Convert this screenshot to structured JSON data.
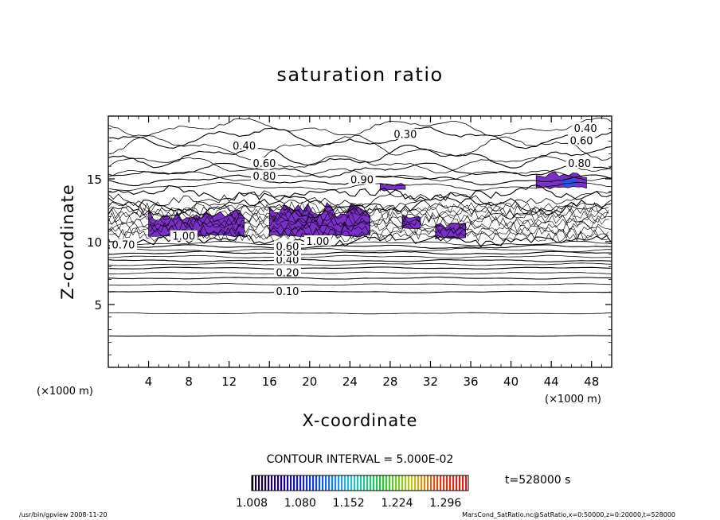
{
  "chart_data": {
    "type": "contour",
    "title": "saturation ratio",
    "xlabel": "X-coordinate",
    "ylabel": "Z-coordinate",
    "x_unit_left": "(×1000 m)",
    "x_unit_right": "(×1000 m)",
    "xlim": [
      0,
      50
    ],
    "ylim": [
      0,
      20
    ],
    "xticks": [
      4,
      8,
      12,
      16,
      20,
      24,
      28,
      32,
      36,
      40,
      44,
      48
    ],
    "yticks": [
      5,
      10,
      15
    ],
    "contour_interval_label": "CONTOUR INTERVAL = 5.000E-02",
    "time_label": "t=528000 s",
    "colorbar_ticks": [
      "1.008",
      "1.080",
      "1.152",
      "1.224",
      "1.296"
    ],
    "colorbar_range": [
      1.008,
      1.33
    ],
    "contour_labels": [
      {
        "text": "0.10",
        "x": 17.8,
        "y": 6.0
      },
      {
        "text": "0.20",
        "x": 17.8,
        "y": 7.5
      },
      {
        "text": "0.40",
        "x": 17.8,
        "y": 8.5
      },
      {
        "text": "0.50",
        "x": 17.8,
        "y": 9.1
      },
      {
        "text": "0.60",
        "x": 17.8,
        "y": 9.6
      },
      {
        "text": "0.70",
        "x": 1.5,
        "y": 9.7
      },
      {
        "text": "1.00",
        "x": 7.5,
        "y": 10.4
      },
      {
        "text": "1.00",
        "x": 20.8,
        "y": 10.0
      },
      {
        "text": "0.40",
        "x": 13.5,
        "y": 17.6
      },
      {
        "text": "0.60",
        "x": 15.5,
        "y": 16.2
      },
      {
        "text": "0.80",
        "x": 15.5,
        "y": 15.2
      },
      {
        "text": "0.90",
        "x": 25.2,
        "y": 14.9
      },
      {
        "text": "0.30",
        "x": 29.5,
        "y": 18.5
      },
      {
        "text": "0.40",
        "x": 47.4,
        "y": 19.0
      },
      {
        "text": "0.60",
        "x": 47.0,
        "y": 18.0
      },
      {
        "text": "0.80",
        "x": 46.8,
        "y": 16.2
      }
    ],
    "supersaturated_regions": [
      {
        "x_range": [
          4.0,
          13.5
        ],
        "z_range": [
          10.4,
          12.6
        ]
      },
      {
        "x_range": [
          16.0,
          26.0
        ],
        "z_range": [
          10.4,
          13.2
        ]
      },
      {
        "x_range": [
          27.0,
          29.5
        ],
        "z_range": [
          14.0,
          14.8
        ]
      },
      {
        "x_range": [
          29.2,
          31.0
        ],
        "z_range": [
          11.0,
          12.2
        ]
      },
      {
        "x_range": [
          32.5,
          35.5
        ],
        "z_range": [
          10.2,
          11.6
        ]
      },
      {
        "x_range": [
          42.5,
          47.5
        ],
        "z_range": [
          14.2,
          15.6
        ]
      }
    ],
    "grid": false
  },
  "footer": {
    "left": "/usr/bin/gpview  2008-11-20",
    "right": "MarsCond_SatRatio.nc@SatRatio,x=0:50000,z=0:20000,t=528000"
  }
}
